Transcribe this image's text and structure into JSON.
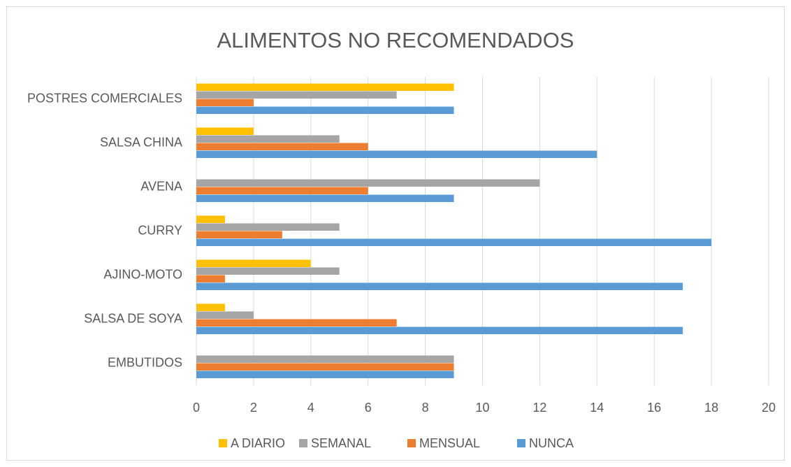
{
  "chart_data": {
    "type": "bar",
    "orientation": "horizontal",
    "title": "ALIMENTOS NO RECOMENDADOS",
    "categories": [
      "POSTRES COMERCIALES",
      "SALSA CHINA",
      "AVENA",
      "CURRY",
      "AJINO-MOTO",
      "SALSA DE SOYA",
      "EMBUTIDOS"
    ],
    "series": [
      {
        "name": "A DIARIO",
        "color": "#ffc000",
        "values": [
          9,
          2,
          0,
          1,
          4,
          1,
          0
        ]
      },
      {
        "name": "SEMANAL",
        "color": "#a5a5a5",
        "values": [
          7,
          5,
          12,
          5,
          5,
          2,
          9
        ]
      },
      {
        "name": "MENSUAL",
        "color": "#ed7d31",
        "values": [
          2,
          6,
          6,
          3,
          1,
          7,
          9
        ]
      },
      {
        "name": "NUNCA",
        "color": "#5b9bd5",
        "values": [
          9,
          14,
          9,
          18,
          17,
          17,
          9
        ]
      }
    ],
    "xlim": [
      0,
      20
    ],
    "xticks": [
      0,
      2,
      4,
      6,
      8,
      10,
      12,
      14,
      16,
      18,
      20
    ],
    "grid": true,
    "legend": "bottom"
  }
}
